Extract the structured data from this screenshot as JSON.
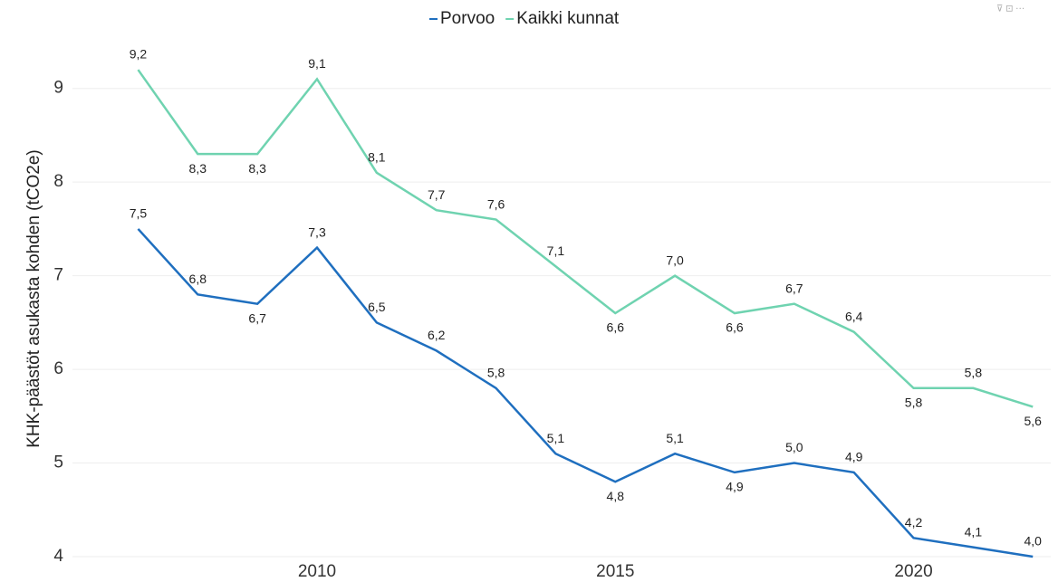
{
  "chart_data": {
    "type": "line",
    "y_label": "KHK-päästöt asukasta kohden (tCO2e)",
    "x": [
      2007,
      2008,
      2009,
      2010,
      2011,
      2012,
      2013,
      2014,
      2015,
      2016,
      2017,
      2018,
      2019,
      2020,
      2021,
      2022
    ],
    "series": [
      {
        "name": "Porvoo",
        "color": "#1f6fbf",
        "values": [
          7.5,
          6.8,
          6.7,
          7.3,
          6.5,
          6.2,
          5.8,
          5.1,
          4.8,
          5.1,
          4.9,
          5.0,
          4.9,
          4.2,
          4.1,
          4.0
        ],
        "value_labels": [
          "7,5",
          "6,8",
          "6,7",
          "7,3",
          "6,5",
          "6,2",
          "5,8",
          "5,1",
          "4,8",
          "5,1",
          "4,9",
          "5,0",
          "4,9",
          "4,2",
          "4,1",
          "4,0"
        ]
      },
      {
        "name": "Kaikki kunnat",
        "color": "#6fd3b0",
        "values": [
          9.2,
          8.3,
          8.3,
          9.1,
          8.1,
          7.7,
          7.6,
          7.1,
          6.6,
          7.0,
          6.6,
          6.7,
          6.4,
          5.8,
          5.8,
          5.6
        ],
        "value_labels": [
          "9,2",
          "8,3",
          "8,3",
          "9,1",
          "8,1",
          "7,7",
          "7,6",
          "7,1",
          "6,6",
          "7,0",
          "6,6",
          "6,7",
          "6,4",
          "5,8",
          "5,8",
          "5,6"
        ]
      }
    ],
    "xlim": [
      2005.9,
      2022.3
    ],
    "xticks": [
      2010,
      2015,
      2020
    ],
    "ylim": [
      4,
      9.5
    ],
    "yticks": [
      4,
      5,
      6,
      7,
      8,
      9
    ],
    "grid": true,
    "legend": "top"
  }
}
